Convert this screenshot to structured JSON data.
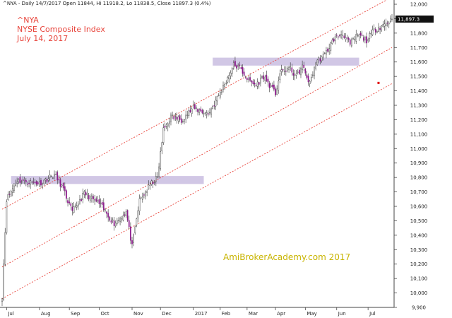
{
  "header": {
    "info": "^NYA - Daily 14/7/2017 Open 11844, Hi 11918.2, Lo 11838.5, Close 11897.3 (0.4%)"
  },
  "title_lines": [
    "^NYA",
    "NYSE Composite Index",
    "July 14, 2017"
  ],
  "watermark": "AmiBrokerAcademy.com  2017",
  "last_price_label": "11,897.3",
  "colors": {
    "up_candle": "#ffffff",
    "down_candle": "#8b1a8b",
    "wick": "#333333",
    "channel": "#e8453c",
    "zone": "#c9bde0",
    "title": "#e8453c",
    "watermark": "#c8b400"
  },
  "chart_data": {
    "type": "candlestick",
    "ylim": [
      9900,
      12000
    ],
    "y_ticks": [
      9900,
      10000,
      10100,
      10200,
      10300,
      10400,
      10500,
      10600,
      10700,
      10800,
      10900,
      11000,
      11100,
      11200,
      11300,
      11400,
      11500,
      11600,
      11700,
      11800,
      11900,
      12000
    ],
    "y_tick_labels": [
      "9,900",
      "10,000",
      "10,100",
      "10,200",
      "10,300",
      "10,400",
      "10,500",
      "10,600",
      "10,700",
      "10,800",
      "10,900",
      "11,000",
      "11,100",
      "11,200",
      "11,300",
      "11,400",
      "11,500",
      "11,600",
      "11,700",
      "11,800",
      "11,900",
      "12,000"
    ],
    "x_months": [
      "Jul",
      "Aug",
      "Sep",
      "Oct",
      "Nov",
      "Dec",
      "2017",
      "Feb",
      "Mar",
      "Apr",
      "May",
      "Jun",
      "Jul"
    ],
    "x_month_index": [
      3,
      25,
      45,
      65,
      87,
      106,
      128,
      146,
      164,
      183,
      203,
      224,
      245
    ],
    "n_bars": 262,
    "anchors": [
      [
        0,
        9980
      ],
      [
        3,
        10650
      ],
      [
        10,
        10780
      ],
      [
        25,
        10760
      ],
      [
        35,
        10820
      ],
      [
        40,
        10740
      ],
      [
        47,
        10560
      ],
      [
        55,
        10690
      ],
      [
        65,
        10620
      ],
      [
        75,
        10480
      ],
      [
        83,
        10560
      ],
      [
        87,
        10320
      ],
      [
        92,
        10640
      ],
      [
        100,
        10760
      ],
      [
        104,
        10800
      ],
      [
        108,
        11130
      ],
      [
        113,
        11220
      ],
      [
        120,
        11200
      ],
      [
        128,
        11280
      ],
      [
        138,
        11240
      ],
      [
        143,
        11330
      ],
      [
        150,
        11470
      ],
      [
        155,
        11580
      ],
      [
        159,
        11560
      ],
      [
        165,
        11470
      ],
      [
        170,
        11440
      ],
      [
        175,
        11500
      ],
      [
        183,
        11380
      ],
      [
        186,
        11520
      ],
      [
        192,
        11560
      ],
      [
        197,
        11500
      ],
      [
        201,
        11570
      ],
      [
        206,
        11450
      ],
      [
        210,
        11600
      ],
      [
        216,
        11650
      ],
      [
        222,
        11760
      ],
      [
        228,
        11800
      ],
      [
        233,
        11720
      ],
      [
        238,
        11790
      ],
      [
        244,
        11750
      ],
      [
        249,
        11820
      ],
      [
        254,
        11850
      ],
      [
        261,
        11897
      ]
    ],
    "last_close": 11897.3,
    "channel_lines": [
      {
        "i0": 0,
        "v0": 10580,
        "i1": 261,
        "v1": 12050
      },
      {
        "i0": 0,
        "v0": 10180,
        "i1": 261,
        "v1": 11700
      },
      {
        "i0": 0,
        "v0": 9960,
        "i1": 261,
        "v1": 11450
      }
    ],
    "zones": [
      {
        "i0": 6,
        "i1": 135,
        "v0": 10755,
        "v1": 10810
      },
      {
        "i0": 141,
        "i1": 239,
        "v0": 11575,
        "v1": 11630
      }
    ],
    "marker": {
      "index": 252,
      "value": 11455
    }
  }
}
